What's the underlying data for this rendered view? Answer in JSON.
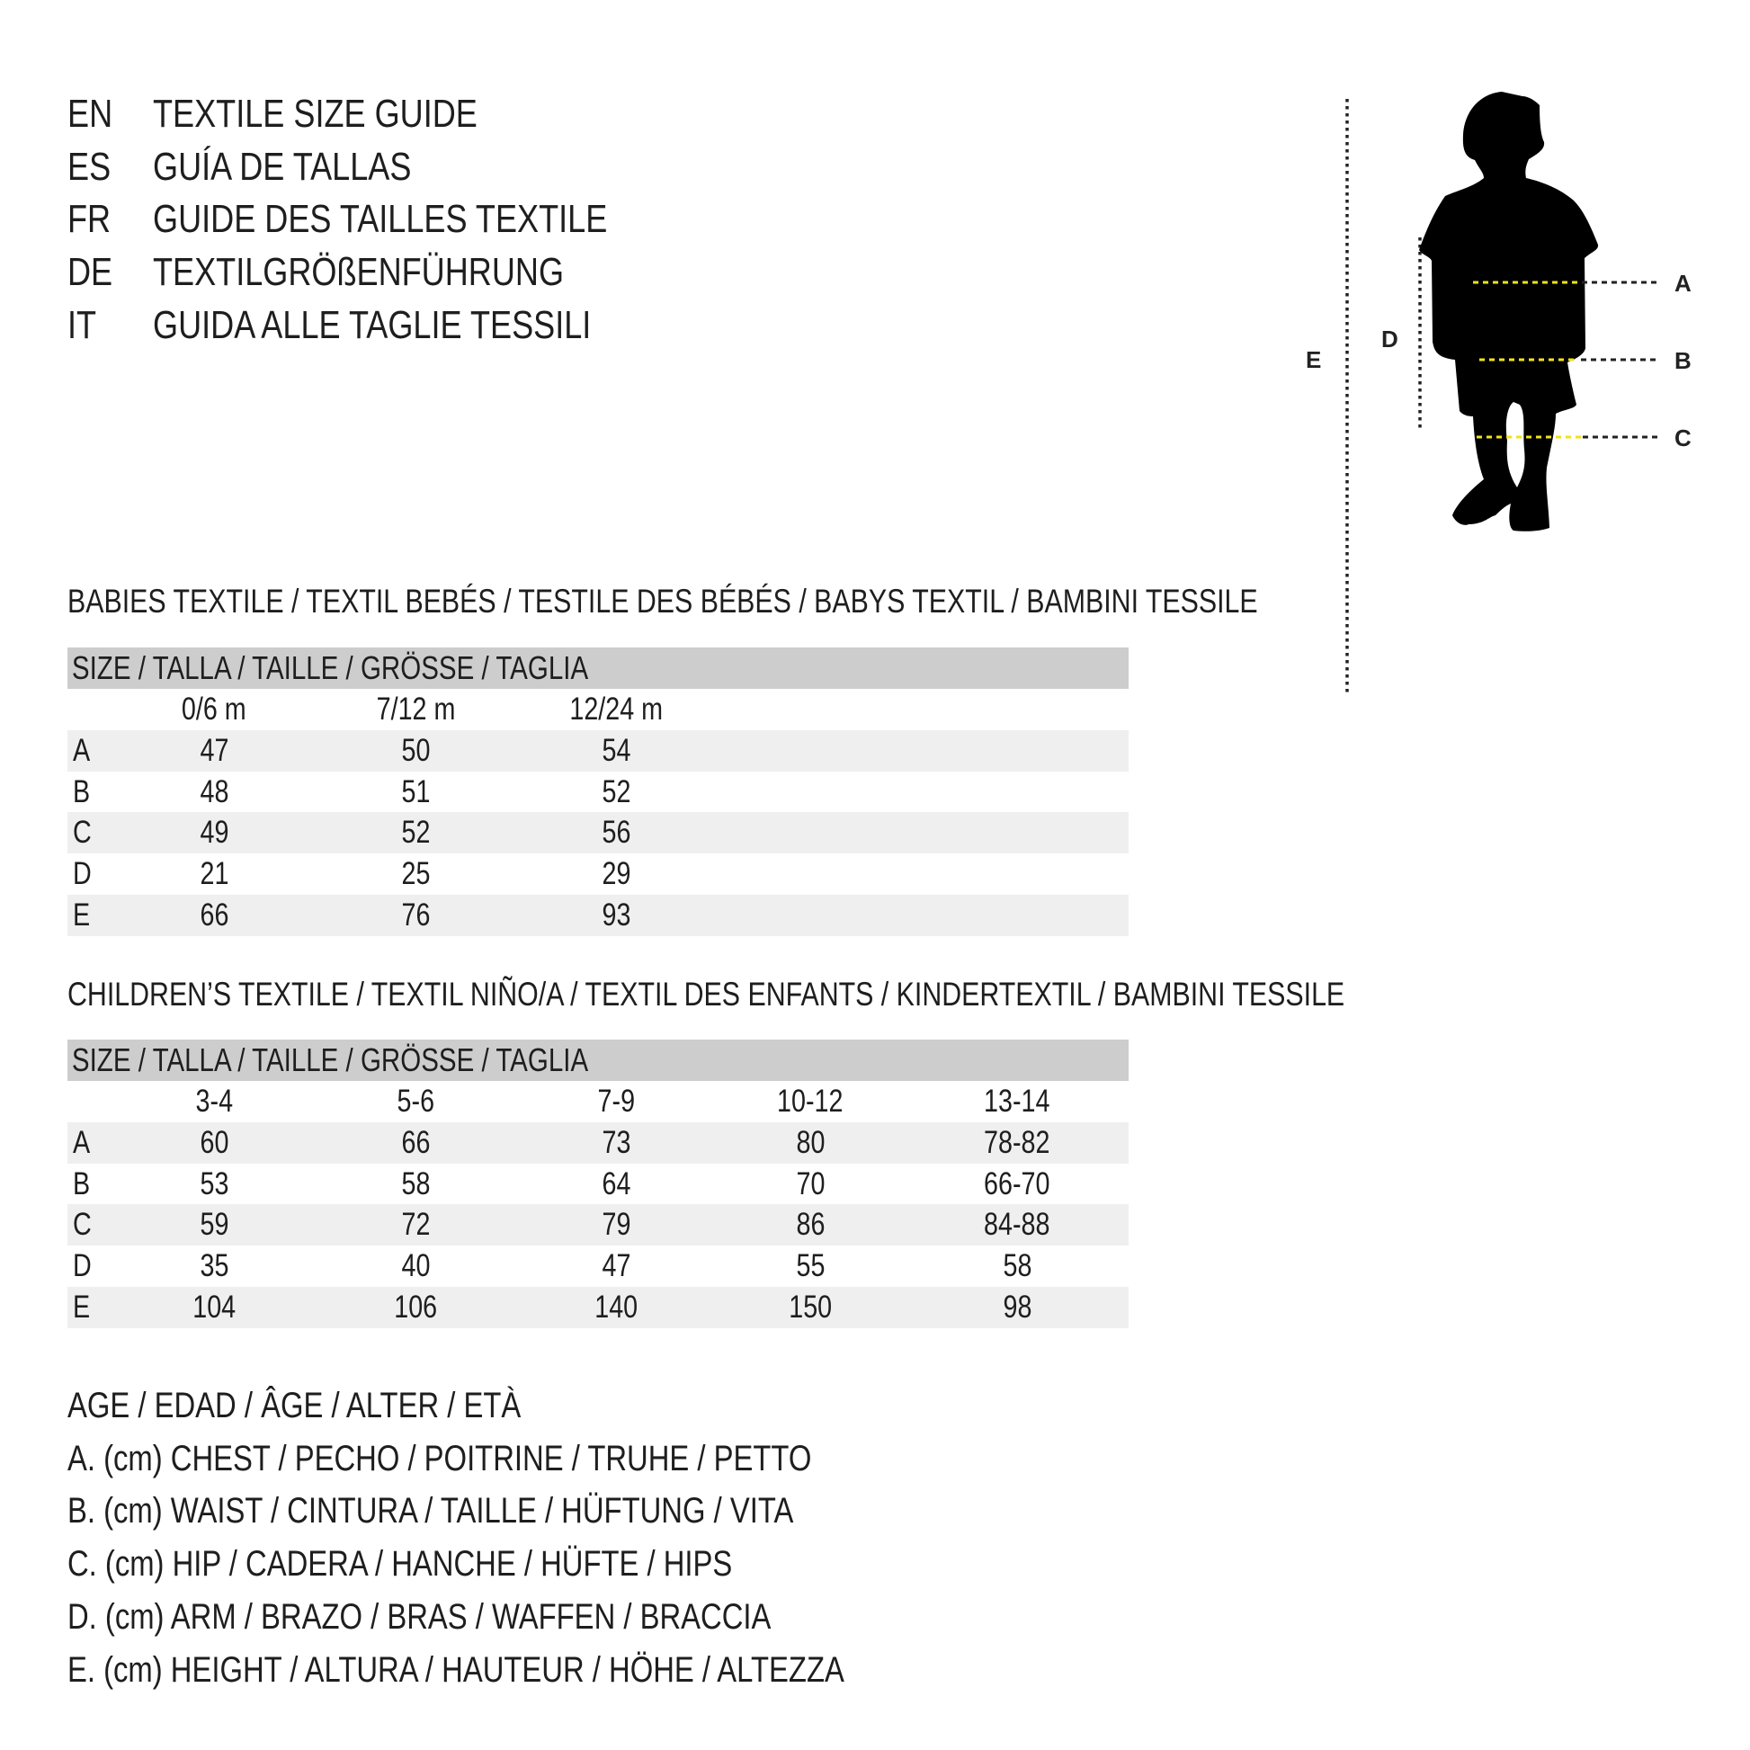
{
  "titles": [
    {
      "code": "EN",
      "text": "TEXTILE SIZE GUIDE"
    },
    {
      "code": "ES",
      "text": "GUÍA DE TALLAS"
    },
    {
      "code": "FR",
      "text": "GUIDE DES TAILLES TEXTILE"
    },
    {
      "code": "DE",
      "text": "TEXTILGRÖßENFÜHRUNG"
    },
    {
      "code": "IT",
      "text": "GUIDA ALLE TAGLIE TESSILI"
    }
  ],
  "figure": {
    "labels": {
      "a": "A",
      "b": "B",
      "c": "C",
      "d": "D",
      "e": "E"
    },
    "measure_line_color": "#f2e21a"
  },
  "babies": {
    "title": "BABIES TEXTILE / TEXTIL BEBÉS / TESTILE DES BÉBÉS / BABYS TEXTIL / BAMBINI TESSILE",
    "size_header": "SIZE / TALLA / TAILLE / GRÖSSE / TAGLIA",
    "columns": [
      "0/6 m",
      "7/12 m",
      "12/24 m"
    ],
    "rows": [
      {
        "label": "A",
        "values": [
          "47",
          "50",
          "54"
        ]
      },
      {
        "label": "B",
        "values": [
          "48",
          "51",
          "52"
        ]
      },
      {
        "label": "C",
        "values": [
          "49",
          "52",
          "56"
        ]
      },
      {
        "label": "D",
        "values": [
          "21",
          "25",
          "29"
        ]
      },
      {
        "label": "E",
        "values": [
          "66",
          "76",
          "93"
        ]
      }
    ]
  },
  "children": {
    "title": "CHILDREN’S TEXTILE / TEXTIL NIÑO/A / TEXTIL DES ENFANTS / KINDERTEXTIL / BAMBINI TESSILE",
    "size_header": "SIZE / TALLA / TAILLE / GRÖSSE / TAGLIA",
    "columns": [
      "3-4",
      "5-6",
      "7-9",
      "10-12",
      "13-14"
    ],
    "rows": [
      {
        "label": "A",
        "values": [
          "60",
          "66",
          "73",
          "80",
          "78-82"
        ]
      },
      {
        "label": "B",
        "values": [
          "53",
          "58",
          "64",
          "70",
          "66-70"
        ]
      },
      {
        "label": "C",
        "values": [
          "59",
          "72",
          "79",
          "86",
          "84-88"
        ]
      },
      {
        "label": "D",
        "values": [
          "35",
          "40",
          "47",
          "55",
          "58"
        ]
      },
      {
        "label": "E",
        "values": [
          "104",
          "106",
          "140",
          "150",
          "98"
        ]
      }
    ]
  },
  "legend": [
    "AGE / EDAD / ÂGE / ALTER / ETÀ",
    "A. (cm) CHEST / PECHO / POITRINE / TRUHE / PETTO",
    "B. (cm) WAIST / CINTURA / TAILLE / HÜFTUNG / VITA",
    "C. (cm) HIP / CADERA / HANCHE / HÜFTE / HIPS",
    "D. (cm) ARM / BRAZO / BRAS / WAFFEN / BRACCIA",
    "E. (cm) HEIGHT / ALTURA / HAUTEUR / HÖHE / ALTEZZA"
  ]
}
